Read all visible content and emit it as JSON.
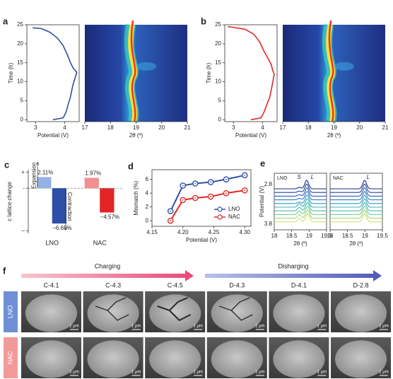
{
  "chart_data": [
    {
      "type": "line",
      "panel": "a",
      "xlabel": "Potential (V)",
      "ylabel": "Time (h)",
      "xlim": [
        2.7,
        4.5
      ],
      "xticks": [
        3,
        4
      ],
      "ylim": [
        -0.5,
        25
      ],
      "yticks": [
        0,
        5,
        10,
        15,
        20,
        25
      ],
      "series": [
        {
          "color": "#2f4fa0",
          "x": [
            3.6,
            3.95,
            4.05,
            4.12,
            4.2,
            4.28,
            4.38,
            4.42,
            4.3,
            4.2,
            4.1,
            3.95,
            3.75,
            3.5,
            3.2,
            2.9
          ],
          "values": [
            0,
            0.5,
            2,
            4,
            6,
            9,
            11.5,
            12.5,
            13.5,
            15,
            17,
            19.5,
            21.5,
            23,
            24,
            24.2
          ]
        }
      ]
    },
    {
      "type": "heatmap",
      "xlabel": "2θ (º)",
      "xlim": [
        17,
        21
      ],
      "xticks": [
        17,
        18,
        19,
        20,
        21
      ]
    },
    {
      "type": "line",
      "panel": "b",
      "xlabel": "Potential (V)",
      "ylabel": "Time (h)",
      "xlim": [
        2.7,
        4.5
      ],
      "xticks": [
        3,
        4
      ],
      "ylim": [
        -0.5,
        25
      ],
      "yticks": [
        0,
        5,
        10,
        15,
        20,
        25
      ],
      "series": [
        {
          "color": "#e02828",
          "x": [
            3.6,
            3.95,
            4.05,
            4.15,
            4.25,
            4.33,
            4.4,
            4.35,
            4.3,
            4.2,
            4.05,
            3.9,
            3.7,
            3.4,
            3.0,
            2.8
          ],
          "values": [
            0,
            0.5,
            2,
            4,
            6,
            9,
            12,
            13,
            14.5,
            16,
            18,
            20.5,
            22.5,
            23.8,
            24.3,
            24.5
          ]
        }
      ]
    },
    {
      "type": "heatmap",
      "xlabel": "2θ (º)",
      "xlim": [
        17,
        21
      ],
      "xticks": [
        17,
        18,
        19,
        20,
        21
      ]
    },
    {
      "type": "bar",
      "panel": "c",
      "ylabel": "c lattice change",
      "categories": [
        "LNO",
        "NAC"
      ],
      "ylim": [
        -8.5,
        3.5
      ],
      "yticks": [
        {
          "value": 3,
          "label": "+"
        },
        {
          "value": 0,
          "label": "-"
        },
        {
          "value": -8,
          "label": "–"
        }
      ],
      "annotations": [
        "Expansion",
        "Contraction"
      ],
      "series": [
        {
          "colors": [
            "#93b1e4",
            "#f29090"
          ],
          "values": [
            2.11,
            1.97
          ],
          "value_labels": [
            "2.11%",
            "1.97%"
          ]
        },
        {
          "colors": [
            "#2d4fa8",
            "#e22424"
          ],
          "values": [
            -6.65,
            -4.57
          ],
          "value_labels": [
            "−6.65%",
            "−4.57%"
          ]
        }
      ]
    },
    {
      "type": "line",
      "panel": "d",
      "xlabel": "Potential (V)",
      "ylabel": "Mismatch (%)",
      "xlim": [
        4.15,
        4.31
      ],
      "xticks": [
        {
          "value": 4.15,
          "label": "4.15"
        },
        {
          "value": 4.2,
          "label": "4.20"
        },
        {
          "value": 4.25,
          "label": "4.25"
        },
        {
          "value": 4.3,
          "label": "4.30"
        }
      ],
      "ylim": [
        -0.8,
        7.4
      ],
      "yticks": [
        0,
        2,
        4,
        6
      ],
      "legend": "lower right",
      "x": [
        4.18,
        4.2,
        4.22,
        4.245,
        4.27,
        4.3
      ],
      "series": [
        {
          "name": "LNO",
          "color": "#2f4fa8",
          "values": [
            1.4,
            5.1,
            5.4,
            5.6,
            6.0,
            6.6
          ]
        },
        {
          "name": "NAC",
          "color": "#e02828",
          "values": [
            0,
            3.0,
            3.3,
            3.5,
            4.0,
            4.4
          ]
        }
      ]
    },
    {
      "type": "waterfall",
      "panel": "e",
      "label": "LNO",
      "peaks": [
        "S",
        "L"
      ],
      "xlabel": "2θ (º)",
      "ylabel": "Potential (V)",
      "xlim": [
        18,
        19.5
      ],
      "xticks": [
        18,
        18.5,
        19,
        19.5
      ],
      "yticks": [
        2.8,
        3.8
      ]
    },
    {
      "type": "waterfall",
      "label": "NAC",
      "peaks": [
        "L"
      ],
      "xlabel": "2θ (º)",
      "xlim": [
        18,
        19.5
      ],
      "xticks": [
        18,
        18.5,
        19,
        19.5
      ]
    }
  ],
  "figure_f": {
    "panel": "f",
    "arrows": [
      "Charging",
      "Disharging"
    ],
    "columns": [
      "C-4.1",
      "C-4.3",
      "C-4.5",
      "D-4.3",
      "D-4.1",
      "D-2.8"
    ],
    "rows": [
      "LNO",
      "NAC"
    ],
    "scale_bar": "1 μm"
  }
}
